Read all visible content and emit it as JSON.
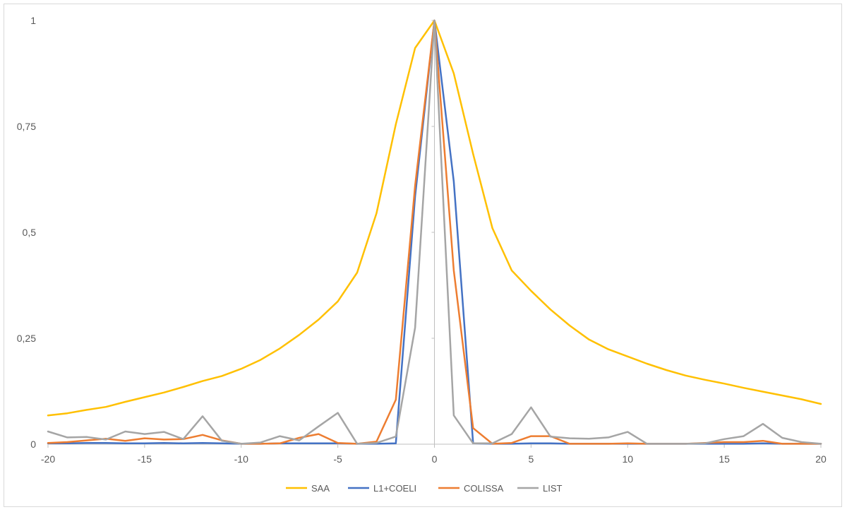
{
  "chart_data": {
    "type": "line",
    "title": "",
    "xlabel": "",
    "ylabel": "",
    "xlim": [
      -20,
      20
    ],
    "ylim": [
      0,
      1
    ],
    "x_ticks": [
      -20,
      -15,
      -10,
      -5,
      0,
      5,
      10,
      15,
      20
    ],
    "x_tick_labels": [
      "-20",
      "-15",
      "-10",
      "-5",
      "0",
      "5",
      "10",
      "15",
      "20"
    ],
    "y_ticks": [
      0,
      0.25,
      0.5,
      0.75,
      1
    ],
    "y_tick_labels": [
      "0",
      "0,25",
      "0,5",
      "0,75",
      "1"
    ],
    "grid": false,
    "legend_position": "bottom",
    "x": [
      -20,
      -19,
      -18,
      -17,
      -16,
      -15,
      -14,
      -13,
      -12,
      -11,
      -10,
      -9,
      -8,
      -7,
      -6,
      -5,
      -4,
      -3,
      -2,
      -1,
      0,
      1,
      2,
      3,
      4,
      5,
      6,
      7,
      8,
      9,
      10,
      11,
      12,
      13,
      14,
      15,
      16,
      17,
      18,
      19,
      20
    ],
    "series": [
      {
        "name": "SAA",
        "color": "#FFC000",
        "values": [
          0.068,
          0.073,
          0.081,
          0.088,
          0.1,
          0.111,
          0.122,
          0.135,
          0.149,
          0.161,
          0.178,
          0.199,
          0.226,
          0.258,
          0.294,
          0.337,
          0.405,
          0.545,
          0.755,
          0.935,
          1.0,
          0.875,
          0.685,
          0.51,
          0.41,
          0.362,
          0.318,
          0.28,
          0.247,
          0.224,
          0.207,
          0.19,
          0.175,
          0.162,
          0.152,
          0.143,
          0.133,
          0.124,
          0.115,
          0.106,
          0.095
        ]
      },
      {
        "name": "L1+COELI",
        "color": "#4472C4",
        "values": [
          0.002,
          0.002,
          0.003,
          0.003,
          0.002,
          0.002,
          0.003,
          0.002,
          0.003,
          0.002,
          0.001,
          0.001,
          0.002,
          0.002,
          0.002,
          0.002,
          0.001,
          0.001,
          0.002,
          0.585,
          1.0,
          0.62,
          0.002,
          0.001,
          0.001,
          0.002,
          0.002,
          0.001,
          0.001,
          0.001,
          0.001,
          0.001,
          0.001,
          0.001,
          0.001,
          0.001,
          0.001,
          0.002,
          0.001,
          0.001,
          0.001
        ]
      },
      {
        "name": "COLISSA",
        "color": "#ED7D31",
        "values": [
          0.003,
          0.005,
          0.009,
          0.013,
          0.008,
          0.014,
          0.011,
          0.012,
          0.022,
          0.009,
          0.001,
          0.001,
          0.002,
          0.015,
          0.024,
          0.003,
          0.001,
          0.006,
          0.105,
          0.61,
          1.0,
          0.41,
          0.038,
          0.001,
          0.003,
          0.019,
          0.019,
          0.001,
          0.001,
          0.001,
          0.002,
          0.001,
          0.001,
          0.001,
          0.003,
          0.005,
          0.005,
          0.008,
          0.001,
          0.001,
          0.001
        ]
      },
      {
        "name": "LIST",
        "color": "#A5A5A5",
        "values": [
          0.03,
          0.016,
          0.017,
          0.011,
          0.03,
          0.024,
          0.029,
          0.012,
          0.066,
          0.008,
          0.001,
          0.004,
          0.019,
          0.009,
          0.042,
          0.074,
          0.001,
          0.003,
          0.018,
          0.275,
          1.0,
          0.068,
          0.002,
          0.002,
          0.024,
          0.087,
          0.018,
          0.014,
          0.013,
          0.016,
          0.029,
          0.001,
          0.001,
          0.001,
          0.002,
          0.012,
          0.019,
          0.048,
          0.015,
          0.005,
          0.001
        ]
      }
    ]
  }
}
